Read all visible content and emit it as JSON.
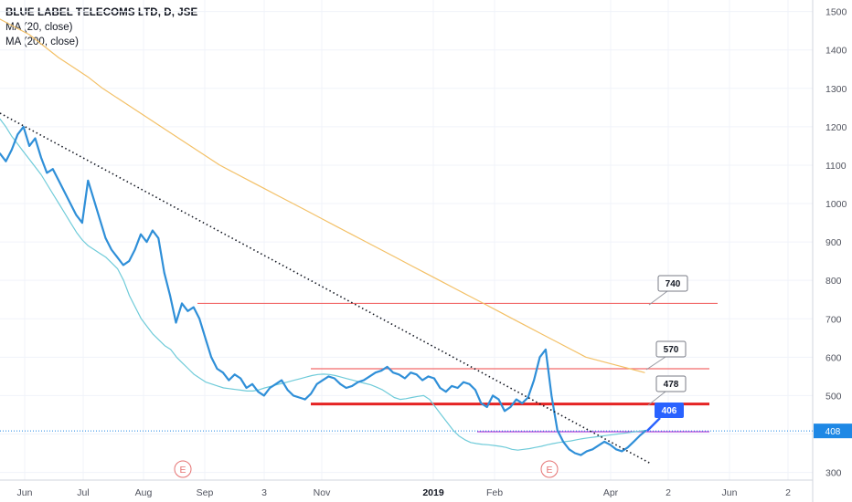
{
  "header": {
    "title": "BLUE LABEL TELECOMS LTD, D, JSE",
    "indicators": [
      "MA (20, close)",
      "MA (200, close)"
    ]
  },
  "colors": {
    "price": "#2f8fd8",
    "ma20": "#6fcbd9",
    "ma200": "#f3c066",
    "resistance_thin": "#f26b6b",
    "support_bold": "#e52323",
    "current_level": "#b23fd6",
    "trendline": "#131722",
    "price_tag_bg": "#2962ff",
    "last_price_tag_bg": "#1e88e5",
    "earnings_marker": "#e57373"
  },
  "chart_data": {
    "type": "line",
    "title": "BLUE LABEL TELECOMS LTD, D, JSE",
    "xlabel": "",
    "ylabel": "",
    "x_ticks": [
      "Jun",
      "Jul",
      "Aug",
      "Sep",
      "3",
      "Nov",
      "2019",
      "Feb",
      "Apr",
      "2",
      "Jun",
      "2"
    ],
    "y_ticks": [
      300,
      400,
      500,
      600,
      700,
      800,
      900,
      1000,
      1100,
      1200,
      1300,
      1400,
      1500
    ],
    "ylim": [
      280,
      1530
    ],
    "grid": true,
    "series": [
      {
        "name": "",
        "values": [
          1130,
          1110,
          1140,
          1180,
          1200,
          1150,
          1170,
          1120,
          1080,
          1090,
          1060,
          1030,
          1000,
          970,
          950,
          1060,
          1010,
          960,
          910,
          880,
          860,
          840,
          850,
          880,
          920,
          900,
          930,
          910,
          820,
          760,
          690,
          740,
          720,
          730,
          700,
          650,
          600,
          570,
          560,
          540,
          555,
          545,
          520,
          530,
          510,
          500,
          520,
          530,
          540,
          515,
          500,
          495,
          490,
          505,
          530,
          540,
          550,
          545,
          530,
          520,
          525,
          535,
          540,
          550,
          560,
          565,
          575,
          560,
          555,
          545,
          560,
          555,
          540,
          550,
          545,
          520,
          510,
          525,
          520,
          535,
          530,
          515,
          480,
          470,
          500,
          490,
          460,
          470,
          490,
          480,
          495,
          540,
          600,
          620,
          500,
          410,
          380,
          360,
          350,
          345,
          355,
          360,
          370,
          380,
          372,
          360,
          355,
          365,
          380,
          395,
          408
        ]
      },
      {
        "name": "",
        "values": [
          1220,
          1200,
          1175,
          1155,
          1135,
          1115,
          1095,
          1075,
          1050,
          1025,
          1000,
          975,
          950,
          925,
          905,
          890,
          880,
          870,
          860,
          845,
          830,
          800,
          760,
          730,
          700,
          680,
          660,
          645,
          630,
          620,
          600,
          585,
          570,
          555,
          545,
          535,
          530,
          525,
          520,
          518,
          516,
          514,
          512,
          512,
          515,
          520,
          524,
          528,
          532,
          536,
          540,
          544,
          548,
          552,
          555,
          556,
          555,
          552,
          548,
          544,
          540,
          536,
          532,
          528,
          522,
          515,
          505,
          495,
          490,
          492,
          495,
          498,
          500,
          490,
          470,
          450,
          430,
          410,
          395,
          385,
          378,
          375,
          373,
          372,
          370,
          368,
          365,
          360,
          358,
          360,
          362,
          365,
          368,
          372,
          375,
          378,
          380,
          382,
          385,
          388,
          390,
          392,
          394,
          396,
          398,
          400,
          402,
          404,
          406,
          408,
          410
        ]
      },
      {
        "name": "",
        "values": [
          1480,
          1460,
          1440,
          1410,
          1380,
          1355,
          1330,
          1300,
          1275,
          1250,
          1225,
          1200,
          1175,
          1150,
          1125,
          1100,
          1080,
          1060,
          1040,
          1020,
          1000,
          980,
          960,
          940,
          920,
          900,
          880,
          860,
          840,
          820,
          800,
          780,
          760,
          740,
          720,
          700,
          680,
          660,
          640,
          620,
          600,
          590,
          580,
          570,
          560
        ]
      }
    ],
    "horizontal_levels": [
      {
        "value": 740,
        "label": "740"
      },
      {
        "value": 570,
        "label": "570"
      },
      {
        "value": 478,
        "label": "478"
      },
      {
        "value": 406,
        "label": "406"
      }
    ],
    "last_price": {
      "value": 408,
      "label": "408"
    },
    "annotations": [
      "E",
      "E"
    ]
  }
}
